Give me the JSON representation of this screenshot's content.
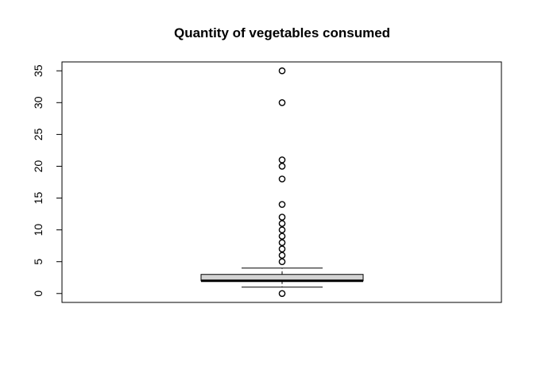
{
  "chart_data": {
    "type": "boxplot",
    "title": "Quantity of vegetables consumed",
    "xlabel": "",
    "ylabel": "",
    "ylim": [
      -1.4,
      36.4
    ],
    "y_ticks": [
      0,
      5,
      10,
      15,
      20,
      25,
      30,
      35
    ],
    "grid": false,
    "box": {
      "whisker_low": 1,
      "q1": 2,
      "median": 2,
      "q3": 3,
      "whisker_high": 4,
      "fill": "#d3d3d3"
    },
    "outliers": [
      0,
      5,
      6,
      7,
      8,
      9,
      10,
      11,
      12,
      14,
      18,
      20,
      21,
      30,
      35
    ]
  }
}
